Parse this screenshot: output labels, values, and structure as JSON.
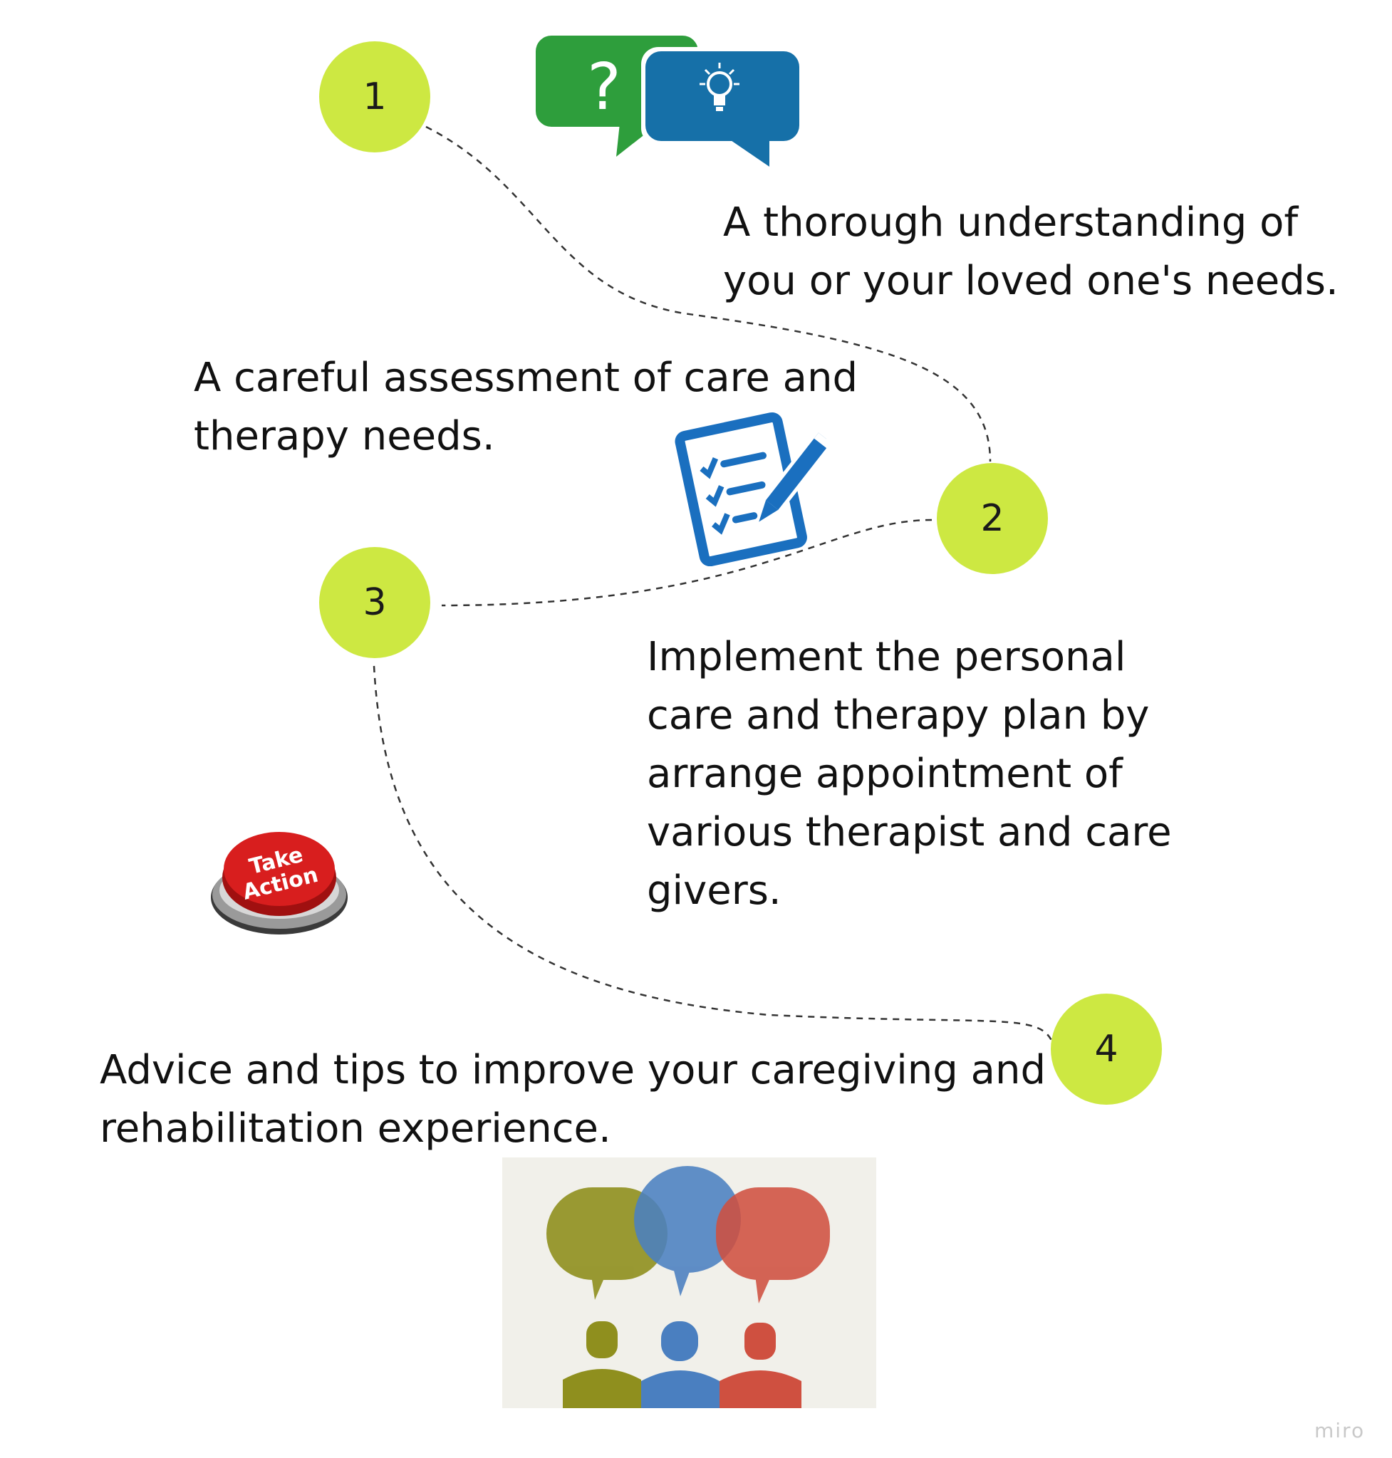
{
  "steps": [
    {
      "number": "1",
      "text": "A thorough understanding of\n you or your loved one's needs."
    },
    {
      "number": "2",
      "text": "A careful assessment of care and\ntherapy needs."
    },
    {
      "number": "3",
      "text": "Implement the personal\n care and therapy plan by\narrange appointment of\nvarious therapist and care\ngivers."
    },
    {
      "number": "4",
      "text": "Advice and tips to improve your caregiving and\nrehabilitation experience."
    }
  ],
  "take_action_button": {
    "line1": "Take",
    "line2": "Action"
  },
  "question_bubble_glyph": "?",
  "colors": {
    "circle": "#cde842",
    "bubble_green": "#2e9e3c",
    "bubble_blue": "#1670a8",
    "checklist_blue": "#1a6fbf",
    "button_red": "#d81e1e",
    "speech_olive": "#8f8f1e",
    "speech_blue": "#4a7fc0",
    "speech_red": "#cf5040"
  },
  "icons": [
    "question-bubble-icon",
    "lightbulb-bubble-icon",
    "checklist-icon",
    "take-action-button-icon",
    "people-speech-bubbles-icon"
  ],
  "watermark": "miro"
}
